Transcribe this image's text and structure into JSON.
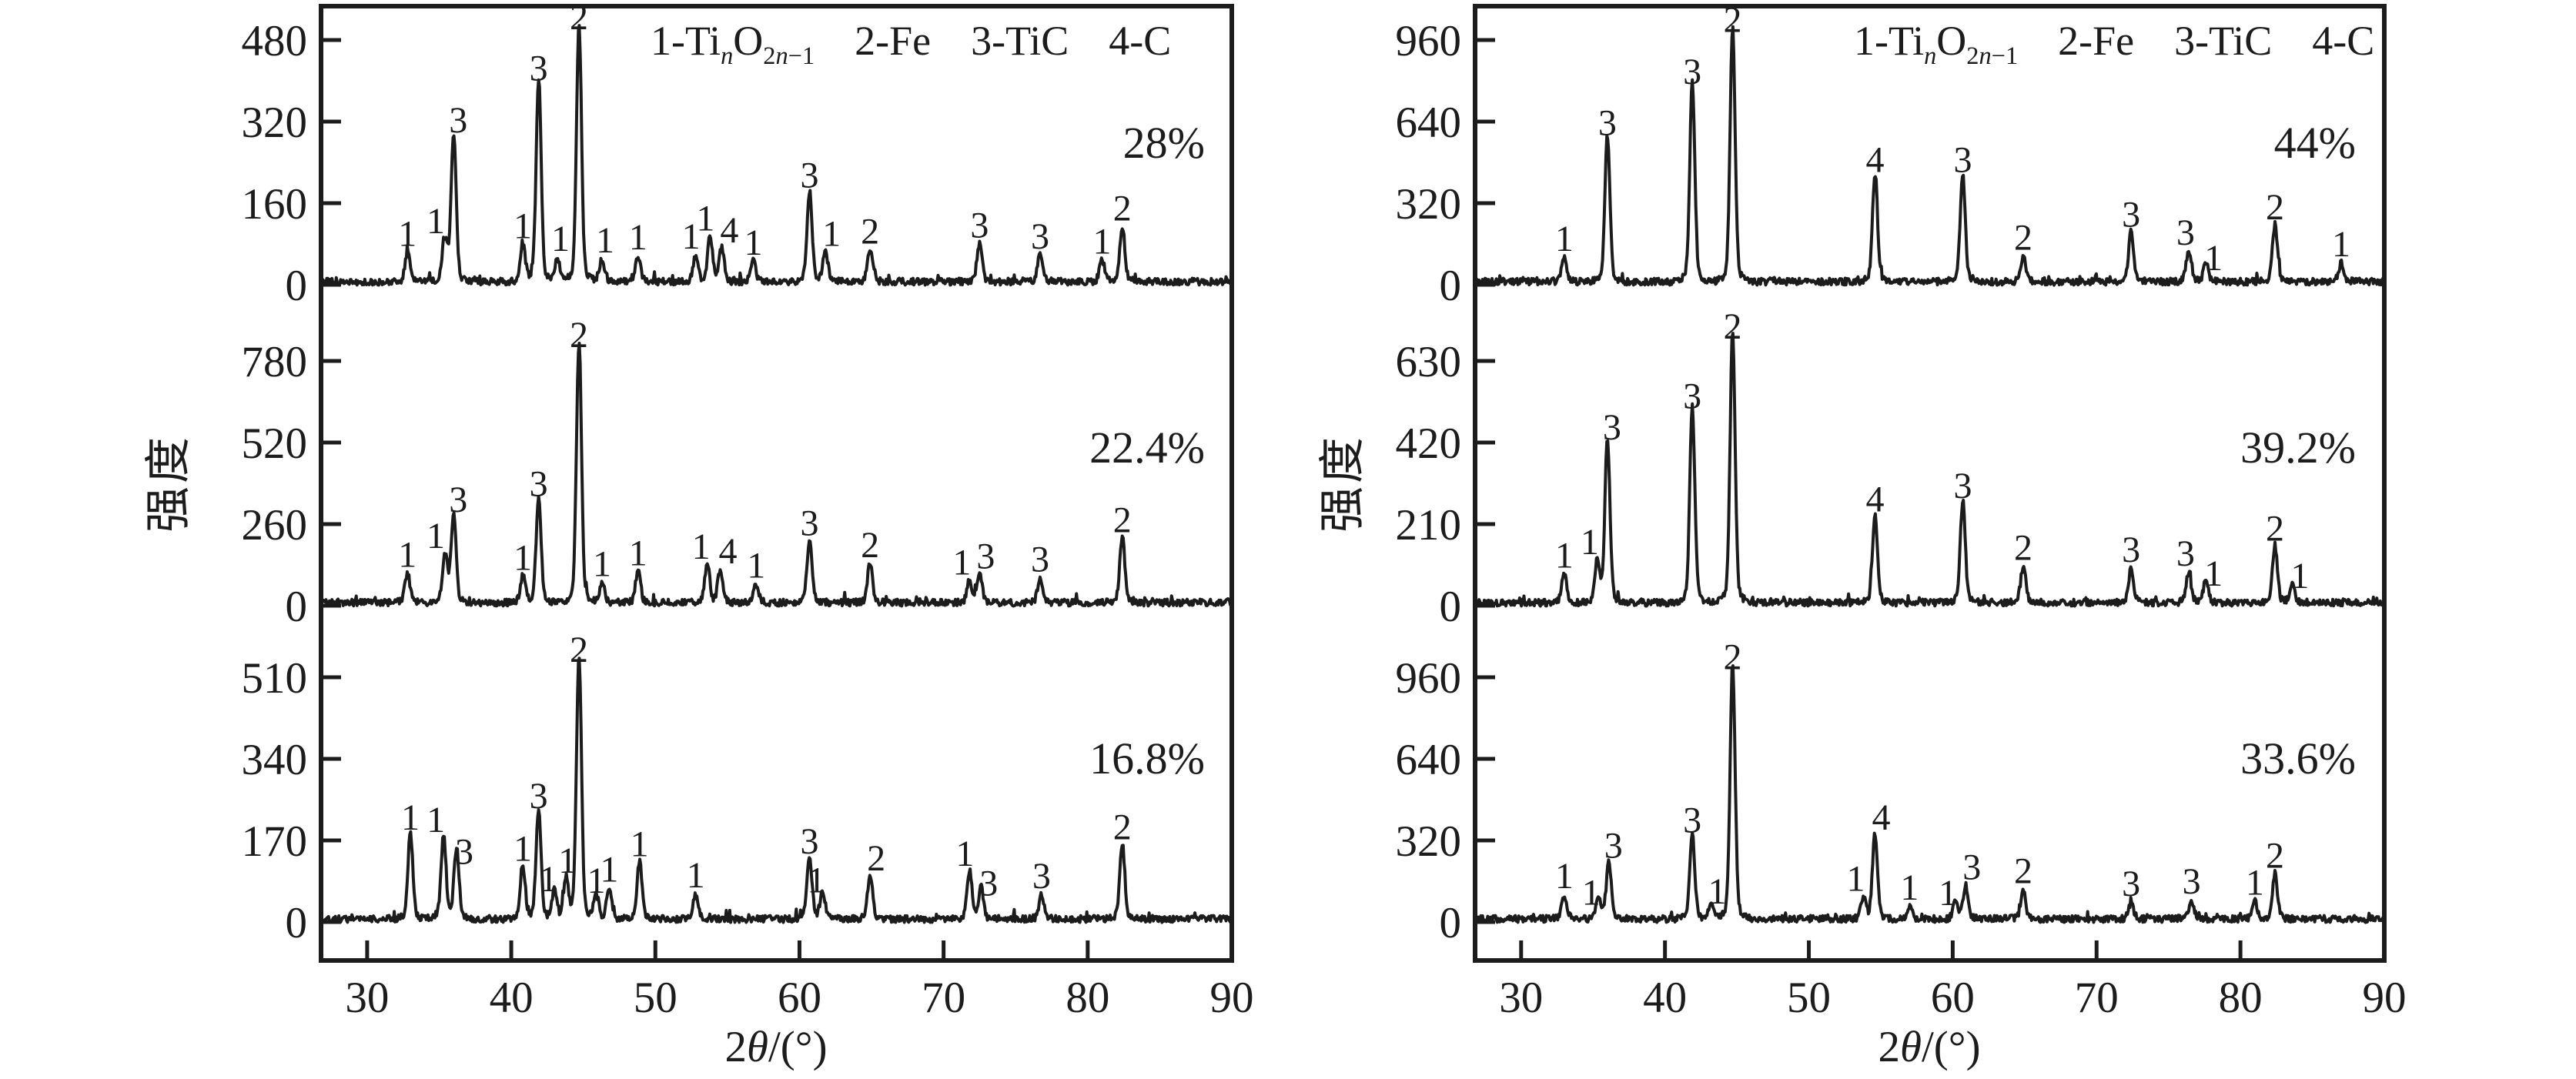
{
  "figure": {
    "background": "#ffffff",
    "ink": "#1c1c1c",
    "legend": {
      "i1_pre": "1-Ti",
      "i1_sub_it": "n",
      "i1_mid": "O",
      "i1_sub2_pre": "2",
      "i1_sub2_it": "n",
      "i1_sub2_post": "−1",
      "i2": "2-Fe",
      "i3": "3-TiC",
      "i4": "4-C"
    },
    "xlabel": {
      "pre": "2",
      "it": "θ",
      "post": "/(°)"
    },
    "ylabel": "强度"
  },
  "chart_data": {
    "type": "line",
    "title": "XRD patterns of TinO2n-1 / Fe / TiC / C composites at different contents",
    "xlabel": "2θ/(°)",
    "ylabel": "强度",
    "x_axis": {
      "range": [
        26.8,
        90
      ],
      "ticks": [
        30,
        40,
        50,
        60,
        70,
        80,
        90
      ]
    },
    "grid": false,
    "phase_legend": [
      {
        "marker": "1",
        "phase": "TinO2n-1"
      },
      {
        "marker": "2",
        "phase": "Fe"
      },
      {
        "marker": "3",
        "phase": "TiC"
      },
      {
        "marker": "4",
        "phase": "C"
      }
    ],
    "peak_note": "peaks encoded as [two_theta_deg, intensity, phase_marker, label_dx_px, label_dy_px]",
    "columns": [
      {
        "panels": [
          {
            "pct": "28%",
            "y_ticks": [
              0,
              160,
              320,
              480
            ],
            "peaks": [
              [
                32.8,
                55,
                "1",
                0,
                0
              ],
              [
                35.4,
                80,
                "1",
                -12,
                0
              ],
              [
                36.0,
                278,
                "3",
                6,
                0
              ],
              [
                40.8,
                70,
                "1",
                0,
                0
              ],
              [
                41.9,
                380,
                "3",
                0,
                0
              ],
              [
                43.2,
                45,
                "1",
                4,
                0
              ],
              [
                44.7,
                480,
                "2",
                0,
                0
              ],
              [
                46.3,
                42,
                "1",
                4,
                0
              ],
              [
                48.8,
                48,
                "1",
                0,
                0
              ],
              [
                52.8,
                50,
                "1",
                -6,
                0
              ],
              [
                53.8,
                85,
                "1",
                -6,
                0
              ],
              [
                54.6,
                62,
                "4",
                10,
                0
              ],
              [
                56.8,
                38,
                "1",
                0,
                0
              ],
              [
                60.7,
                170,
                "3",
                0,
                0
              ],
              [
                61.8,
                55,
                "1",
                8,
                0
              ],
              [
                64.9,
                60,
                "2",
                0,
                0
              ],
              [
                72.5,
                72,
                "3",
                0,
                0
              ],
              [
                76.7,
                50,
                "3",
                0,
                0
              ],
              [
                81.0,
                40,
                "1",
                0,
                0
              ],
              [
                82.4,
                105,
                "2",
                0,
                0
              ]
            ]
          },
          {
            "pct": "22.4%",
            "y_ticks": [
              0,
              260,
              520,
              780
            ],
            "peaks": [
              [
                32.8,
                90,
                "1",
                0,
                0
              ],
              [
                35.4,
                150,
                "1",
                -12,
                0
              ],
              [
                36.0,
                265,
                "3",
                6,
                0
              ],
              [
                40.8,
                80,
                "1",
                0,
                0
              ],
              [
                41.9,
                315,
                "3",
                0,
                0
              ],
              [
                44.7,
                790,
                "2",
                0,
                0
              ],
              [
                46.3,
                60,
                "1",
                0,
                0
              ],
              [
                48.8,
                95,
                "1",
                0,
                0
              ],
              [
                53.6,
                115,
                "1",
                -8,
                0
              ],
              [
                54.5,
                100,
                "4",
                10,
                0
              ],
              [
                57.0,
                55,
                "1",
                0,
                0
              ],
              [
                60.7,
                190,
                "3",
                0,
                0
              ],
              [
                64.9,
                120,
                "2",
                0,
                0
              ],
              [
                71.8,
                65,
                "1",
                -10,
                0
              ],
              [
                72.5,
                85,
                "3",
                8,
                0
              ],
              [
                76.7,
                75,
                "3",
                0,
                0
              ],
              [
                82.4,
                200,
                "2",
                0,
                0
              ]
            ]
          },
          {
            "pct": "16.8%",
            "y_ticks": [
              0,
              170,
              340,
              510
            ],
            "peaks": [
              [
                33.0,
                170,
                "1",
                0,
                0
              ],
              [
                35.3,
                165,
                "1",
                -10,
                0
              ],
              [
                36.2,
                140,
                "3",
                10,
                26
              ],
              [
                40.8,
                105,
                "1",
                0,
                0
              ],
              [
                41.9,
                215,
                "3",
                0,
                0
              ],
              [
                43.0,
                58,
                "1",
                -8,
                10
              ],
              [
                43.8,
                80,
                "1",
                2,
                0
              ],
              [
                44.7,
                520,
                "2",
                0,
                0
              ],
              [
                45.9,
                48,
                "1",
                0,
                6
              ],
              [
                46.8,
                62,
                "1",
                0,
                0
              ],
              [
                48.9,
                115,
                "1",
                0,
                0
              ],
              [
                52.8,
                50,
                "1",
                0,
                0
              ],
              [
                60.7,
                120,
                "3",
                0,
                0
              ],
              [
                61.6,
                55,
                "1",
                -8,
                10
              ],
              [
                64.9,
                85,
                "2",
                8,
                0
              ],
              [
                71.8,
                95,
                "1",
                -6,
                0
              ],
              [
                72.6,
                62,
                "3",
                10,
                18
              ],
              [
                76.8,
                48,
                "3",
                0,
                0
              ],
              [
                82.4,
                150,
                "2",
                0,
                0
              ]
            ]
          }
        ]
      },
      {
        "panels": [
          {
            "pct": "44%",
            "y_ticks": [
              0,
              320,
              640,
              960
            ],
            "peaks": [
              [
                33.0,
                90,
                "1",
                0,
                0
              ],
              [
                36.0,
                545,
                "3",
                0,
                0
              ],
              [
                41.9,
                745,
                "3",
                0,
                0
              ],
              [
                44.7,
                950,
                "2",
                0,
                0
              ],
              [
                54.6,
                400,
                "4",
                0,
                0
              ],
              [
                60.7,
                400,
                "3",
                0,
                0
              ],
              [
                64.9,
                95,
                "2",
                0,
                0
              ],
              [
                72.4,
                185,
                "3",
                0,
                0
              ],
              [
                76.4,
                115,
                "3",
                -4,
                0
              ],
              [
                77.6,
                70,
                "1",
                10,
                18
              ],
              [
                82.4,
                215,
                "2",
                0,
                0
              ],
              [
                87.0,
                70,
                "1",
                0,
                0
              ]
            ]
          },
          {
            "pct": "39.2%",
            "y_ticks": [
              0,
              210,
              420,
              630
            ],
            "peaks": [
              [
                33.0,
                70,
                "1",
                0,
                0
              ],
              [
                35.3,
                105,
                "1",
                -10,
                0
              ],
              [
                36.0,
                400,
                "3",
                6,
                0
              ],
              [
                41.9,
                480,
                "3",
                0,
                0
              ],
              [
                44.7,
                660,
                "2",
                0,
                0
              ],
              [
                54.6,
                215,
                "4",
                0,
                0
              ],
              [
                60.7,
                250,
                "3",
                0,
                0
              ],
              [
                64.9,
                90,
                "2",
                0,
                0
              ],
              [
                72.4,
                85,
                "3",
                0,
                0
              ],
              [
                76.4,
                75,
                "3",
                -4,
                0
              ],
              [
                77.6,
                55,
                "1",
                10,
                16
              ],
              [
                82.4,
                140,
                "2",
                0,
                0
              ],
              [
                83.6,
                50,
                "1",
                10,
                16
              ]
            ]
          },
          {
            "pct": "33.6%",
            "y_ticks": [
              0,
              320,
              640,
              960
            ],
            "peaks": [
              [
                33.0,
                90,
                "1",
                0,
                0
              ],
              [
                35.4,
                80,
                "1",
                -10,
                18
              ],
              [
                36.1,
                210,
                "3",
                6,
                0
              ],
              [
                41.9,
                310,
                "3",
                0,
                0
              ],
              [
                43.2,
                60,
                "1",
                8,
                10
              ],
              [
                44.7,
                950,
                "2",
                0,
                0
              ],
              [
                53.8,
                80,
                "1",
                -10,
                0
              ],
              [
                54.6,
                320,
                "4",
                8,
                0
              ],
              [
                57.0,
                45,
                "1",
                0,
                0
              ],
              [
                60.2,
                60,
                "1",
                -10,
                12
              ],
              [
                60.9,
                125,
                "3",
                8,
                0
              ],
              [
                64.9,
                110,
                "2",
                0,
                0
              ],
              [
                72.4,
                60,
                "3",
                0,
                0
              ],
              [
                76.6,
                70,
                "3",
                0,
                0
              ],
              [
                81.0,
                65,
                "1",
                0,
                0
              ],
              [
                82.4,
                170,
                "2",
                0,
                0
              ]
            ]
          }
        ]
      }
    ]
  }
}
